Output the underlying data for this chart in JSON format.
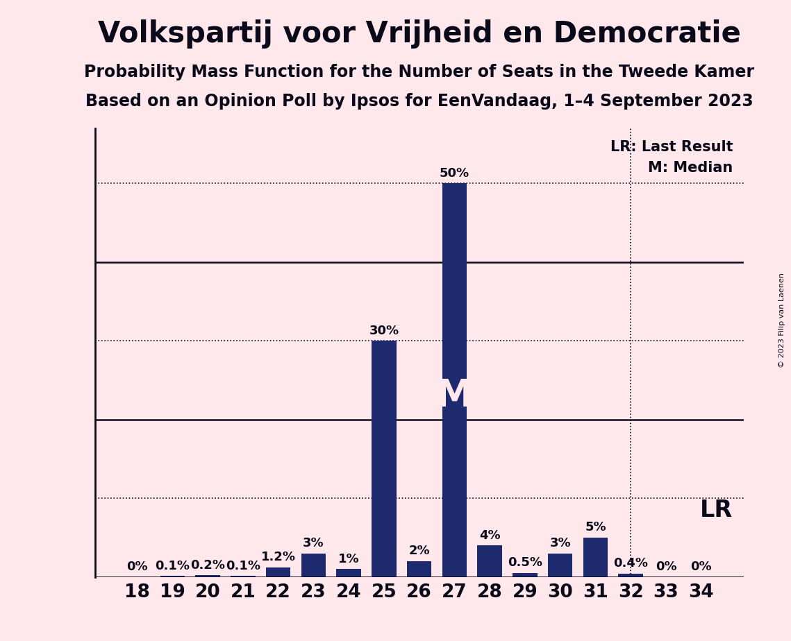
{
  "title": "Volkspartij voor Vrijheid en Democratie",
  "subtitle1": "Probability Mass Function for the Number of Seats in the Tweede Kamer",
  "subtitle2": "Based on an Opinion Poll by Ipsos for EenVandaag, 1–4 September 2023",
  "copyright": "© 2023 Filip van Laenen",
  "seats": [
    18,
    19,
    20,
    21,
    22,
    23,
    24,
    25,
    26,
    27,
    28,
    29,
    30,
    31,
    32,
    33,
    34
  ],
  "probabilities": [
    0.0,
    0.1,
    0.2,
    0.1,
    1.2,
    3.0,
    1.0,
    30.0,
    2.0,
    50.0,
    4.0,
    0.5,
    3.0,
    5.0,
    0.4,
    0.0,
    0.0
  ],
  "bar_color": "#1E2A6E",
  "background_color": "#FFE8EC",
  "text_color": "#0A0A1A",
  "median_seat": 27,
  "lr_seat": 32,
  "solid_lines": [
    20,
    40
  ],
  "dotted_lines": [
    10,
    30,
    50
  ],
  "ylim": [
    0,
    57
  ],
  "lr_label": "LR: Last Result",
  "m_label": "M: Median",
  "lr_short": "LR",
  "m_short": "M",
  "title_fontsize": 30,
  "subtitle_fontsize": 17,
  "tick_label_fontsize": 19,
  "bar_label_fontsize": 13,
  "axis_label_fontsize": 22,
  "legend_fontsize": 15,
  "m_fontsize": 40,
  "lr_fontsize": 24
}
